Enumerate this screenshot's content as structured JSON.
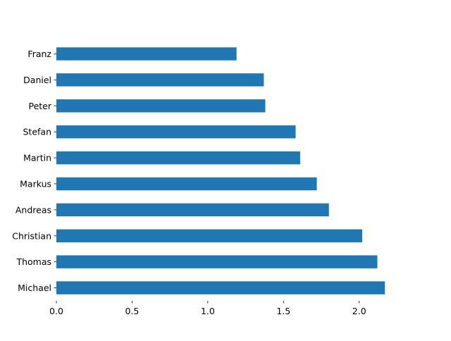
{
  "chart_data": {
    "type": "bar",
    "orientation": "horizontal",
    "categories": [
      "Michael",
      "Thomas",
      "Christian",
      "Andreas",
      "Markus",
      "Martin",
      "Stefan",
      "Peter",
      "Daniel",
      "Franz"
    ],
    "values": [
      2.17,
      2.12,
      2.02,
      1.8,
      1.72,
      1.61,
      1.58,
      1.38,
      1.37,
      1.19
    ],
    "xticks": [
      "0.0",
      "0.5",
      "1.0",
      "1.5",
      "2.0"
    ],
    "xlim": [
      0,
      2.2
    ],
    "title": "",
    "xlabel": "",
    "ylabel": "",
    "grid": false,
    "bar_color": "#1f77b4"
  }
}
